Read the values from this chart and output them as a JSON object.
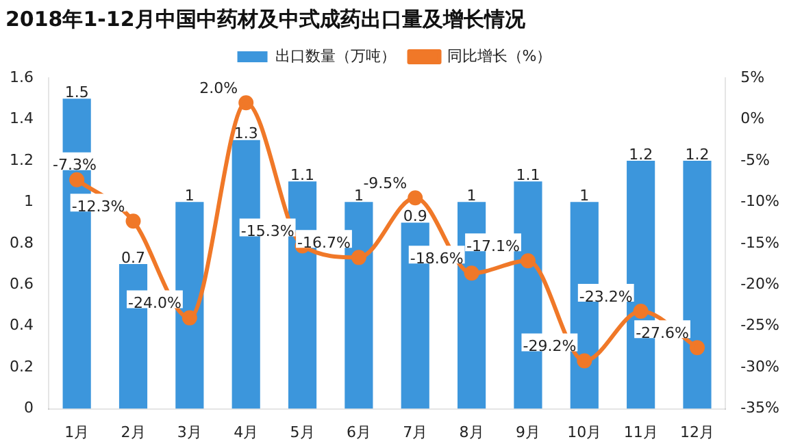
{
  "chart_data": {
    "type": "bar",
    "title": "2018年1-12月中国中药材及中式成药出口量及增长情况",
    "categories": [
      "1月",
      "2月",
      "3月",
      "4月",
      "5月",
      "6月",
      "7月",
      "8月",
      "9月",
      "10月",
      "11月",
      "12月"
    ],
    "series": [
      {
        "name": "出口数量（万吨）",
        "color": "#3c96dc",
        "values": [
          1.5,
          0.7,
          1,
          1.3,
          1.1,
          1,
          0.9,
          1,
          1.1,
          1,
          1.2,
          1.2
        ],
        "value_labels": [
          "1.5",
          "0.7",
          "1",
          "1.3",
          "1.1",
          "1",
          "0.9",
          "1",
          "1.1",
          "1",
          "1.2",
          "1.2"
        ]
      },
      {
        "name": "同比增长（%）",
        "type": "line",
        "axis": "y2",
        "color": "#f07828",
        "values": [
          -7.3,
          -12.3,
          -24.0,
          2.0,
          -15.3,
          -16.7,
          -9.5,
          -18.6,
          -17.1,
          -29.2,
          -23.2,
          -27.6
        ],
        "value_labels": [
          "-7.3%",
          "-12.3%",
          "-24.0%",
          "2.0%",
          "-15.3%",
          "-16.7%",
          "-9.5%",
          "-18.6%",
          "-17.1%",
          "-29.2%",
          "-23.2%",
          "-27.6%"
        ]
      }
    ],
    "ylim": [
      0,
      1.6
    ],
    "yticks": [
      0,
      0.2,
      0.4,
      0.6,
      0.8,
      1,
      1.2,
      1.4,
      1.6
    ],
    "y2lim": [
      -35,
      5
    ],
    "y2ticks": [
      {
        "value": -35,
        "label": "-35%"
      },
      {
        "value": -30,
        "label": "-30%"
      },
      {
        "value": -25,
        "label": "-25%"
      },
      {
        "value": -20,
        "label": "-20%"
      },
      {
        "value": -15,
        "label": "-15%"
      },
      {
        "value": -10,
        "label": "-10%"
      },
      {
        "value": -5,
        "label": "-5%"
      },
      {
        "value": 0,
        "label": "0%"
      },
      {
        "value": 5,
        "label": "5%"
      }
    ],
    "grid": false,
    "legend": "top",
    "marker": "circle"
  }
}
